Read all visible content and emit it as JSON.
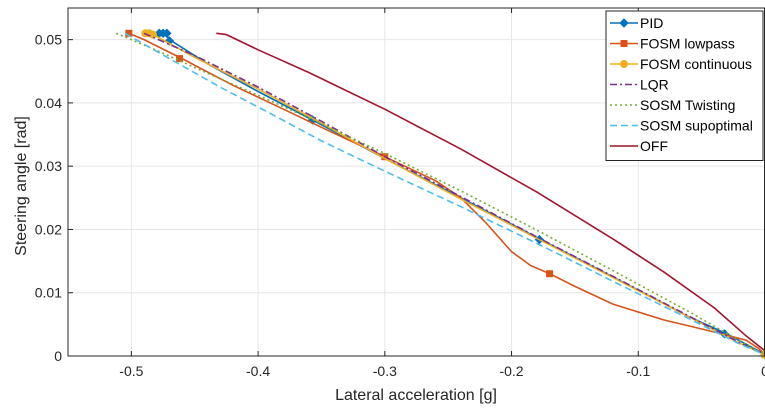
{
  "chart_data": {
    "type": "line",
    "xlabel": "Lateral acceleration [g]",
    "ylabel": "Steering angle [rad]",
    "xlim": [
      -0.55,
      0
    ],
    "ylim": [
      0,
      0.055
    ],
    "xticks": [
      -0.5,
      -0.4,
      -0.3,
      -0.2,
      -0.1,
      0
    ],
    "xtick_labels": [
      "-0.5",
      "-0.4",
      "-0.3",
      "-0.2",
      "-0.1",
      "0"
    ],
    "yticks": [
      0,
      0.01,
      0.02,
      0.03,
      0.04,
      0.05
    ],
    "ytick_labels": [
      "0",
      "0.01",
      "0.02",
      "0.03",
      "0.04",
      "0.05"
    ],
    "grid": true,
    "legend_position": "top-right",
    "series": [
      {
        "name": "PID",
        "color": "#0072BD",
        "dash": "solid",
        "marker": "diamond",
        "x": [
          -0.474,
          -0.472,
          -0.47,
          -0.44,
          -0.4,
          -0.357,
          -0.3,
          -0.24,
          -0.178,
          -0.12,
          -0.06,
          -0.03,
          -0.005,
          0
        ],
        "y": [
          0.051,
          0.0506,
          0.05,
          0.0462,
          0.0418,
          0.0373,
          0.0312,
          0.025,
          0.0185,
          0.0125,
          0.0062,
          0.0035,
          0.0008,
          0.0002
        ],
        "markers_x": [
          -0.478,
          -0.475,
          -0.472,
          -0.47,
          -0.357,
          -0.178,
          -0.032,
          0
        ],
        "markers_y": [
          0.051,
          0.051,
          0.051,
          0.0498,
          0.0373,
          0.0184,
          0.0035,
          0.0002
        ]
      },
      {
        "name": "FOSM lowpass",
        "color": "#D95319",
        "dash": "solid",
        "marker": "square",
        "x": [
          -0.502,
          -0.49,
          -0.46,
          -0.42,
          -0.38,
          -0.34,
          -0.3,
          -0.26,
          -0.24,
          -0.22,
          -0.2,
          -0.185,
          -0.17,
          -0.15,
          -0.12,
          -0.08,
          -0.04,
          -0.015,
          -0.005,
          0
        ],
        "y": [
          0.051,
          0.05,
          0.047,
          0.0428,
          0.039,
          0.0352,
          0.0315,
          0.0277,
          0.025,
          0.021,
          0.0165,
          0.0143,
          0.013,
          0.011,
          0.0082,
          0.0057,
          0.0038,
          0.0025,
          0.0012,
          0.0002
        ],
        "markers_x": [
          -0.502,
          -0.462,
          -0.3,
          -0.17,
          0
        ],
        "markers_y": [
          0.051,
          0.047,
          0.0315,
          0.013,
          0.0002
        ]
      },
      {
        "name": "FOSM continuous",
        "color": "#EDB120",
        "dash": "solid",
        "marker": "circle",
        "x": [
          -0.487,
          -0.48,
          -0.45,
          -0.4,
          -0.35,
          -0.3,
          -0.24,
          -0.18,
          -0.12,
          -0.06,
          -0.02,
          0
        ],
        "y": [
          0.051,
          0.0505,
          0.0472,
          0.0422,
          0.0368,
          0.0312,
          0.0248,
          0.0186,
          0.0124,
          0.0062,
          0.002,
          0.0002
        ],
        "markers_x": [
          -0.489,
          -0.486,
          -0.483,
          0
        ],
        "markers_y": [
          0.051,
          0.051,
          0.0508,
          0.0002
        ]
      },
      {
        "name": "LQR",
        "color": "#7E2F8E",
        "dash": "dashdot",
        "marker": "none",
        "x": [
          -0.49,
          -0.45,
          -0.4,
          -0.35,
          -0.3,
          -0.24,
          -0.18,
          -0.12,
          -0.06,
          -0.02,
          0
        ],
        "y": [
          0.051,
          0.0475,
          0.0425,
          0.0371,
          0.0315,
          0.0252,
          0.0188,
          0.0126,
          0.0063,
          0.0021,
          0.0003
        ]
      },
      {
        "name": "SOSM Twisting",
        "color": "#77AC30",
        "dash": "dotted",
        "marker": "none",
        "x": [
          -0.512,
          -0.48,
          -0.44,
          -0.4,
          -0.35,
          -0.3,
          -0.24,
          -0.18,
          -0.12,
          -0.06,
          -0.02,
          0
        ],
        "y": [
          0.051,
          0.0483,
          0.0447,
          0.0412,
          0.0367,
          0.032,
          0.0261,
          0.0199,
          0.0135,
          0.007,
          0.0024,
          0.0003
        ]
      },
      {
        "name": "SOSM supoptimal",
        "color": "#4DBEEE",
        "dash": "dashed",
        "marker": "none",
        "x": [
          -0.505,
          -0.47,
          -0.43,
          -0.39,
          -0.35,
          -0.3,
          -0.24,
          -0.18,
          -0.12,
          -0.06,
          -0.02,
          0
        ],
        "y": [
          0.051,
          0.047,
          0.0425,
          0.0383,
          0.034,
          0.0292,
          0.0236,
          0.0178,
          0.0118,
          0.0059,
          0.0019,
          0.0002
        ]
      },
      {
        "name": "OFF",
        "color": "#A2142F",
        "dash": "solid",
        "marker": "none",
        "x": [
          -0.433,
          -0.425,
          -0.4,
          -0.36,
          -0.3,
          -0.24,
          -0.18,
          -0.12,
          -0.08,
          -0.04,
          -0.015,
          0
        ],
        "y": [
          0.051,
          0.0508,
          0.0484,
          0.0448,
          0.039,
          0.0327,
          0.0259,
          0.0185,
          0.0133,
          0.0076,
          0.0032,
          0.0008
        ]
      }
    ]
  }
}
